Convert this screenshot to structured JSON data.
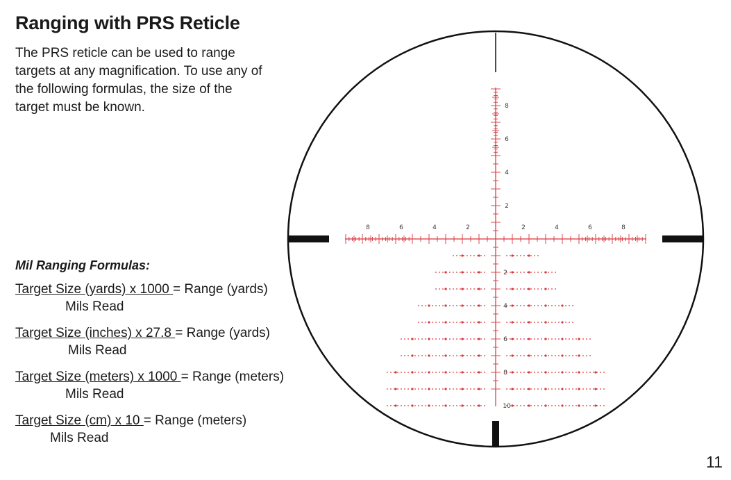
{
  "title": "Ranging with PRS Reticle",
  "intro": "The PRS reticle can be used to range targets at any magnification.  To use any of the following formulas, the size of the target must be known.",
  "formulas_heading": "Mil Ranging Formulas:",
  "formulas": [
    {
      "numerator": "Target Size (yards) x 1000 ",
      "result": "= Range (yards)",
      "denominator": "Mils Read"
    },
    {
      "numerator": "Target Size (inches) x 27.8 ",
      "result": "= Range (yards)",
      "denominator": "Mils Read"
    },
    {
      "numerator": "Target Size (meters) x 1000 ",
      "result": "= Range (meters)",
      "denominator": "Mils Read"
    },
    {
      "numerator": "Target Size (cm) x 10 ",
      "result": "= Range (meters)",
      "denominator": "Mils Read"
    }
  ],
  "reticle": {
    "upper_labels": [
      "8",
      "6",
      "4",
      "2"
    ],
    "left_labels": [
      "8",
      "6",
      "4",
      "2"
    ],
    "right_labels": [
      "2",
      "4",
      "6",
      "8"
    ],
    "lower_labels": [
      "2",
      "4",
      "6",
      "8",
      "10"
    ],
    "reticle_color": "#d9343a",
    "frame_color": "#111111"
  },
  "page_number": "11"
}
